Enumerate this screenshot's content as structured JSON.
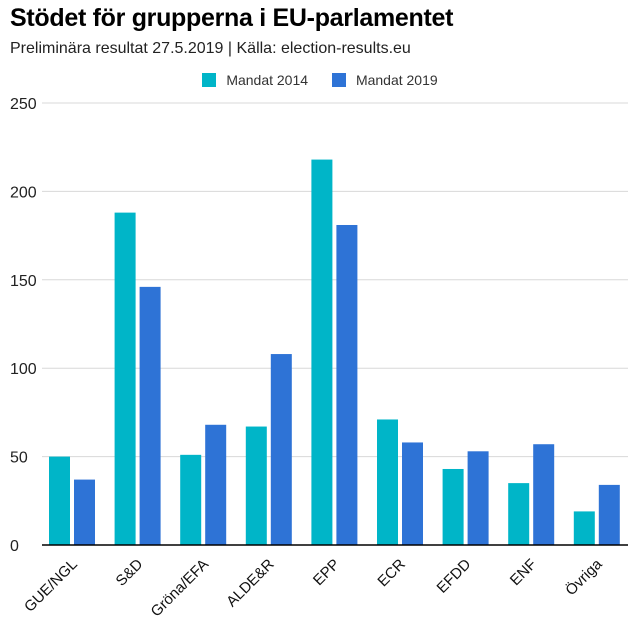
{
  "colors": {
    "s2014": "#00b5c8",
    "s2019": "#2e73d6",
    "grid": "#d8d8d8",
    "axis": "#000000"
  },
  "chart_data": {
    "type": "bar",
    "title": "Stödet för grupperna i EU-parlamentet",
    "subtitle": "Preliminära resultat 27.5.2019 | Källa: election-results.eu",
    "categories": [
      "GUE/NGL",
      "S&D",
      "Gröna/EFA",
      "ALDE&R",
      "EPP",
      "ECR",
      "EFDD",
      "ENF",
      "Övriga"
    ],
    "series": [
      {
        "name": "Mandat 2014",
        "values": [
          50,
          188,
          51,
          67,
          218,
          71,
          43,
          35,
          19
        ]
      },
      {
        "name": "Mandat 2019",
        "values": [
          37,
          146,
          68,
          108,
          181,
          58,
          53,
          57,
          34
        ]
      }
    ],
    "ylim": [
      0,
      250
    ],
    "yticks": [
      0,
      50,
      100,
      150,
      200,
      250
    ],
    "grid": true,
    "legend_position": "top-center"
  }
}
